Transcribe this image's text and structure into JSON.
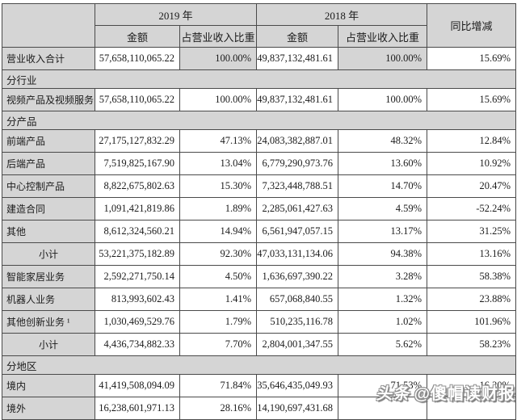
{
  "header": {
    "year_2019": "2019 年",
    "year_2018": "2018 年",
    "amount_label": "金额",
    "pct_label": "占营业收入比重",
    "yoy_label": "同比增减"
  },
  "table": {
    "rows": [
      {
        "type": "data",
        "label": "营业收入合计",
        "cells": [
          "57,658,110,065.22",
          "100.00%",
          "49,837,132,481.61",
          "100.00%",
          "15.69%"
        ],
        "shaded": [
          1,
          3
        ]
      },
      {
        "type": "section",
        "label": "分行业"
      },
      {
        "type": "data",
        "label": "视频产品及视频服务",
        "cells": [
          "57,658,110,065.22",
          "100.00%",
          "49,837,132,481.61",
          "100.00%",
          "15.69%"
        ]
      },
      {
        "type": "section",
        "label": "分产品"
      },
      {
        "type": "data",
        "label": "前端产品",
        "cells": [
          "27,175,127,832.29",
          "47.13%",
          "24,083,382,887.01",
          "48.32%",
          "12.84%"
        ]
      },
      {
        "type": "data",
        "label": "后端产品",
        "cells": [
          "7,519,825,167.90",
          "13.04%",
          "6,779,290,973.76",
          "13.60%",
          "10.92%"
        ]
      },
      {
        "type": "data",
        "label": "中心控制产品",
        "cells": [
          "8,822,675,802.63",
          "15.30%",
          "7,323,448,788.51",
          "14.70%",
          "20.47%"
        ]
      },
      {
        "type": "data",
        "label": "建造合同",
        "cells": [
          "1,091,421,819.86",
          "1.89%",
          "2,285,061,427.63",
          "4.59%",
          "-52.24%"
        ]
      },
      {
        "type": "data",
        "label": "其他",
        "cells": [
          "8,612,324,560.21",
          "14.94%",
          "6,561,947,057.15",
          "13.17%",
          "31.25%"
        ]
      },
      {
        "type": "data",
        "label": "小计",
        "center": true,
        "cells": [
          "53,221,375,182.89",
          "92.30%",
          "47,033,131,134.06",
          "94.38%",
          "13.16%"
        ]
      },
      {
        "type": "data",
        "label": "智能家居业务",
        "cells": [
          "2,592,271,750.14",
          "4.50%",
          "1,636,697,390.22",
          "3.28%",
          "58.38%"
        ]
      },
      {
        "type": "data",
        "label": "机器人业务",
        "cells": [
          "813,993,602.43",
          "1.41%",
          "657,068,840.55",
          "1.32%",
          "23.88%"
        ]
      },
      {
        "type": "data",
        "label": "其他创新业务 ¹",
        "cells": [
          "1,030,469,529.76",
          "1.79%",
          "510,235,116.78",
          "1.02%",
          "101.96%"
        ]
      },
      {
        "type": "data",
        "label": "小计",
        "center": true,
        "cells": [
          "4,436,734,882.33",
          "7.70%",
          "2,804,001,347.55",
          "5.62%",
          "58.23%"
        ]
      },
      {
        "type": "section",
        "label": "分地区"
      },
      {
        "type": "data",
        "label": "境内",
        "cells": [
          "41,419,508,094.09",
          "71.84%",
          "35,646,435,049.93",
          "71.53%",
          "16.20%"
        ]
      },
      {
        "type": "data",
        "label": "境外",
        "cells": [
          "16,238,601,971.13",
          "28.16%",
          "14,190,697,431.68",
          "",
          ""
        ]
      }
    ]
  },
  "watermark": {
    "brand": "头条",
    "handle": "@傻帽读财报"
  }
}
